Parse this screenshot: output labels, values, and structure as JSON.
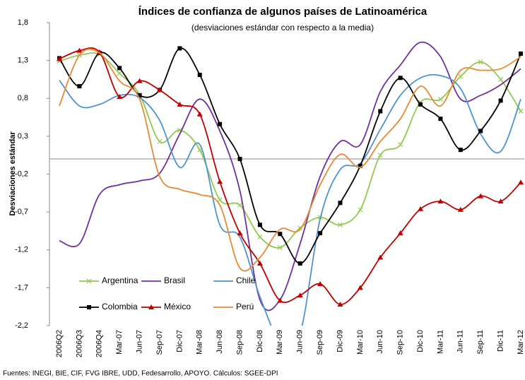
{
  "chart_data": {
    "type": "line",
    "title": "Índices de confianza de algunos países de  Latinoamérica",
    "subtitle": "(desviaciones estándar con respecto a la media)",
    "ylabel": "Desviaciones estándar",
    "source": "Fuentes: INEGI, BIE, CIF, FVG IBRE, UDD, Fedesarrollo, APOYO. Cálculos: SGEE-DPI",
    "categories": [
      "2006Q2",
      "2006Q3",
      "2006Q4",
      "Mar-07",
      "Jun-07",
      "Sep-07",
      "Dic-07",
      "Mar-08",
      "Jun-08",
      "Sep-08",
      "Dic-08",
      "Mar-09",
      "Jun-09",
      "Sep-09",
      "Dic-09",
      "Mar-10",
      "Jun-10",
      "Sep-10",
      "Dic-10",
      "Mar-11",
      "Jun-11",
      "Sep-11",
      "Dic-11",
      "Mar-12"
    ],
    "ylim": [
      -2.2,
      1.8
    ],
    "yticks": [
      {
        "value": 1.8,
        "label": "1,8"
      },
      {
        "value": 1.3,
        "label": "1,3"
      },
      {
        "value": 0.8,
        "label": "0,8"
      },
      {
        "value": 0.3,
        "label": "0,3"
      },
      {
        "value": -0.2,
        "label": "-0,2"
      },
      {
        "value": -0.7,
        "label": "-0,7"
      },
      {
        "value": -1.2,
        "label": "-1,2"
      },
      {
        "value": -1.7,
        "label": "-1,7"
      },
      {
        "value": -2.2,
        "label": "-2,2"
      }
    ],
    "x_axis_crosses": 0,
    "smooth": true,
    "series": [
      {
        "name": "Argentina",
        "color": "#92c94f",
        "marker": "x",
        "values": [
          1.29,
          1.37,
          1.38,
          1.13,
          0.85,
          0.23,
          0.38,
          0.12,
          -0.54,
          -0.61,
          -1.03,
          -1.17,
          -0.91,
          -0.77,
          -0.87,
          -0.67,
          0.05,
          0.19,
          0.75,
          0.79,
          1.09,
          1.28,
          1.05,
          0.63
        ]
      },
      {
        "name": "Brasil",
        "color": "#7030a0",
        "marker": "none",
        "values": [
          -1.08,
          -1.12,
          -0.47,
          -0.34,
          -0.29,
          -0.19,
          0.33,
          0.79,
          0.37,
          -0.42,
          -1.86,
          -1.86,
          -1.12,
          -0.23,
          0.23,
          0.19,
          0.89,
          1.24,
          1.54,
          1.35,
          0.79,
          0.84,
          0.98,
          1.19
        ]
      },
      {
        "name": "Chile",
        "color": "#4f94d0",
        "marker": "none",
        "values": [
          1.04,
          0.7,
          0.72,
          0.84,
          0.81,
          0.51,
          -0.11,
          0.19,
          -0.87,
          -1.03,
          -1.82,
          -2.4,
          -2.3,
          -0.79,
          -0.14,
          -0.06,
          0.39,
          0.84,
          1.07,
          1.1,
          0.93,
          0.33,
          0.1,
          0.79
        ]
      },
      {
        "name": "Colombia",
        "color": "#000000",
        "marker": "square",
        "values": [
          1.33,
          0.96,
          1.4,
          1.2,
          0.84,
          0.91,
          1.46,
          1.11,
          0.46,
          0.0,
          -0.87,
          -0.99,
          -1.38,
          -0.98,
          -0.58,
          -0.09,
          0.63,
          1.07,
          0.72,
          0.53,
          0.12,
          0.37,
          0.77,
          1.39
        ]
      },
      {
        "name": "México",
        "color": "#c00000",
        "marker": "triangle",
        "values": [
          1.32,
          1.43,
          1.41,
          0.82,
          1.03,
          0.91,
          0.72,
          0.59,
          -0.3,
          -0.98,
          -1.38,
          -1.87,
          -1.8,
          -1.65,
          -1.92,
          -1.7,
          -1.3,
          -0.98,
          -0.66,
          -0.56,
          -0.67,
          -0.49,
          -0.56,
          -0.31
        ]
      },
      {
        "name": "Perú",
        "color": "#e88a35",
        "marker": "none",
        "values": [
          0.7,
          1.37,
          1.4,
          1.03,
          0.79,
          -0.23,
          -0.4,
          -0.47,
          -0.61,
          -1.44,
          -1.3,
          -0.93,
          -0.93,
          -0.34,
          0.06,
          -0.11,
          0.23,
          0.53,
          0.96,
          0.7,
          1.17,
          1.17,
          1.19,
          1.35
        ]
      }
    ]
  }
}
